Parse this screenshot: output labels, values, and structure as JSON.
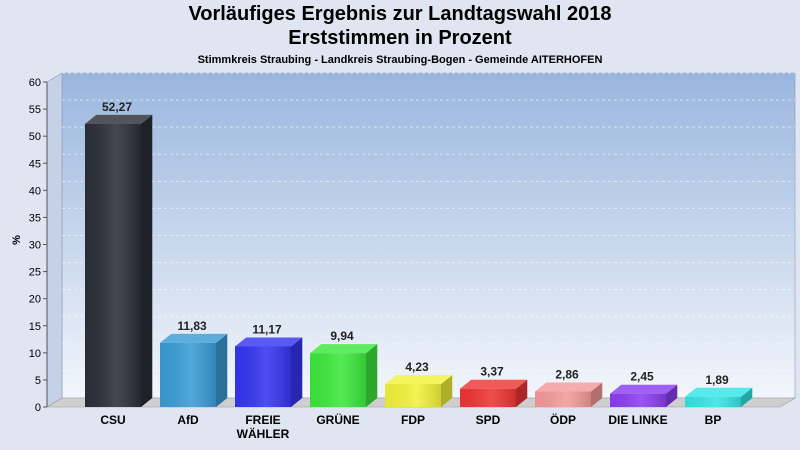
{
  "header": {
    "title_line1": "Vorläufiges Ergebnis zur Landtagswahl 2018",
    "title_line2": "Erststimmen in Prozent",
    "subtitle": "Stimmkreis Straubing - Landkreis Straubing-Bogen - Gemeinde AITERHOFEN"
  },
  "chart_data": {
    "type": "bar",
    "categories": [
      "CSU",
      "AfD",
      "FREIE WÄHLER",
      "GRÜNE",
      "FDP",
      "SPD",
      "ÖDP",
      "DIE LINKE",
      "BP"
    ],
    "category_lines": [
      [
        "CSU"
      ],
      [
        "AfD"
      ],
      [
        "FREIE",
        "WÄHLER"
      ],
      [
        "GRÜNE"
      ],
      [
        "FDP"
      ],
      [
        "SPD"
      ],
      [
        "ÖDP"
      ],
      [
        "DIE LINKE"
      ],
      [
        "BP"
      ]
    ],
    "values": [
      52.27,
      11.83,
      11.17,
      9.94,
      4.23,
      3.37,
      2.86,
      2.45,
      1.89
    ],
    "value_labels": [
      "52,27",
      "11,83",
      "11,17",
      "9,94",
      "4,23",
      "3,37",
      "2,86",
      "2,45",
      "1,89"
    ],
    "colors": [
      "#2b2f38",
      "#3a9cd6",
      "#3535f2",
      "#3de83d",
      "#f2f23a",
      "#ef3535",
      "#f59a9a",
      "#8c3ef0",
      "#33e6e6"
    ],
    "ylabel": "%",
    "ylim": [
      0,
      60
    ],
    "yticks": [
      0,
      5,
      10,
      15,
      20,
      25,
      30,
      35,
      40,
      45,
      50,
      55,
      60
    ],
    "grid": true,
    "legend": "none"
  }
}
